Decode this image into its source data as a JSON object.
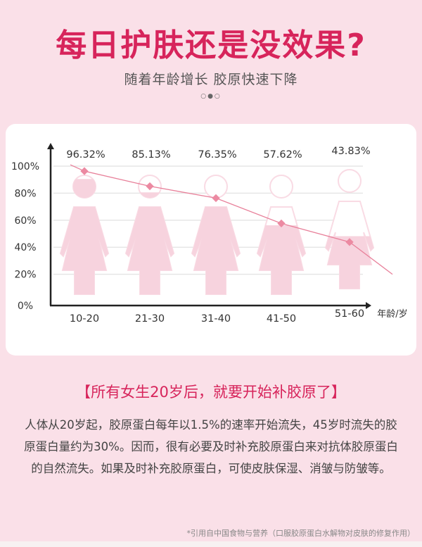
{
  "header": {
    "title": "每日护肤还是没效果?",
    "subtitle": "随着年龄增长 胶原快速下降",
    "pager": "○●○"
  },
  "chart_data": {
    "type": "line",
    "categories": [
      "10-20",
      "21-30",
      "31-40",
      "41-50",
      "51-60"
    ],
    "values": [
      96.32,
      85.13,
      76.35,
      57.62,
      43.83
    ],
    "data_labels": [
      "96.32%",
      "85.13%",
      "76.35%",
      "57.62%",
      "43.83%"
    ],
    "yticks": [
      "0%",
      "20%",
      "40%",
      "60%",
      "80%",
      "100%"
    ],
    "ylim": [
      0,
      100
    ],
    "xlabel": "年龄/岁",
    "ylabel": "",
    "grid": true,
    "colors": {
      "line": "#e8809a",
      "marker": "#ec8aa2",
      "figure_fill": "#f7d3de",
      "figure_outline": "#f9dbe4"
    }
  },
  "headline": "【所有女生20岁后，就要开始补胶原了】",
  "body": "人体从20岁起，胶原蛋白每年以1.5%的速率开始流失，45岁时流失的胶原蛋白量约为30%。因而，很有必要及时补充胶原蛋白来对抗体胶原蛋白的自然流失。如果及时补充胶原蛋白，可使皮肤保湿、消皱与防皱等。",
  "footnote": "*引用自中国食物与营养（口服胶原蛋白水解物对皮肤的修复作用）"
}
